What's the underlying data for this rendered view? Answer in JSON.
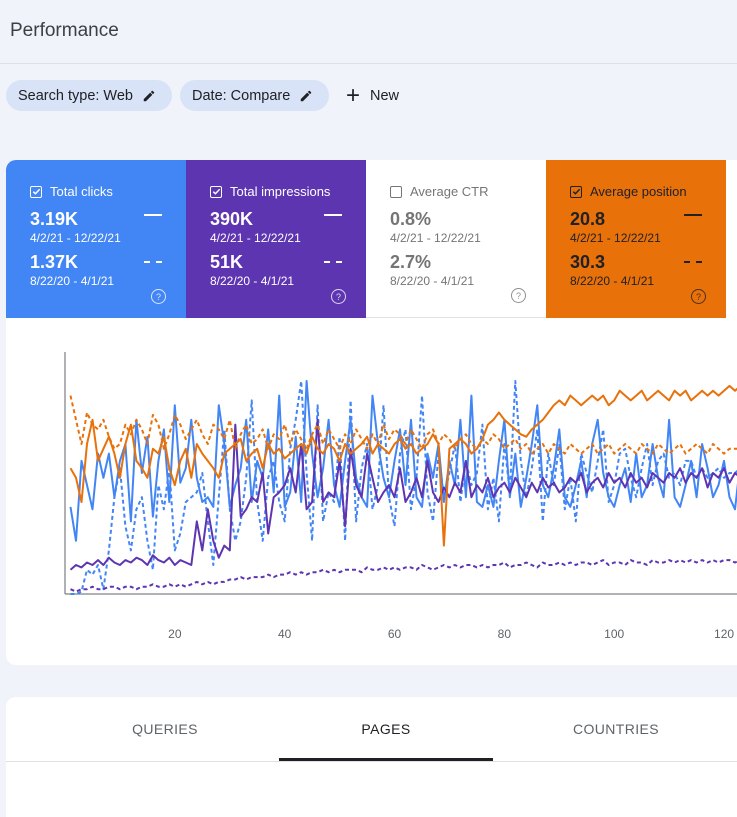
{
  "page_title": "Performance",
  "filters": [
    {
      "label": "Search type: Web"
    },
    {
      "label": "Date: Compare"
    }
  ],
  "new_button": {
    "label": "New"
  },
  "colors": {
    "clicks": "#4285f4",
    "impressions": "#5e35b1",
    "ctr": "#ffffff",
    "position": "#e8710a"
  },
  "metrics": [
    {
      "title": "Total clicks",
      "checked": true,
      "value": "3.19K",
      "range": "4/2/21 - 12/22/21",
      "compare_value": "1.37K",
      "compare_range": "8/22/20 - 4/1/21",
      "help_icon": "help-circle-icon"
    },
    {
      "title": "Total impressions",
      "checked": true,
      "value": "390K",
      "range": "4/2/21 - 12/22/21",
      "compare_value": "51K",
      "compare_range": "8/22/20 - 4/1/21",
      "help_icon": "help-circle-icon"
    },
    {
      "title": "Average CTR",
      "checked": false,
      "value": "0.8%",
      "range": "4/2/21 - 12/22/21",
      "compare_value": "2.7%",
      "compare_range": "8/22/20 - 4/1/21",
      "help_icon": "help-circle-icon"
    },
    {
      "title": "Average position",
      "checked": true,
      "value": "20.8",
      "range": "4/2/21 - 12/22/21",
      "compare_value": "30.3",
      "compare_range": "8/22/20 - 4/1/21",
      "help_icon": "help-circle-icon"
    }
  ],
  "chart_data": {
    "type": "line",
    "title": "",
    "xlabel": "",
    "ylabel": "",
    "xlim": [
      0,
      124
    ],
    "ylim": [
      0,
      100
    ],
    "x_ticks": [
      20,
      40,
      60,
      80,
      100,
      120
    ],
    "grid": false,
    "series": [
      {
        "name": "Total clicks (4/2/21 - 12/22/21)",
        "color": "#4285f4",
        "dashed": false,
        "values": [
          36,
          22,
          55,
          45,
          35,
          58,
          48,
          58,
          40,
          55,
          62,
          30,
          72,
          50,
          65,
          32,
          55,
          68,
          38,
          78,
          46,
          52,
          72,
          48,
          38,
          40,
          36,
          78,
          62,
          36,
          45,
          52,
          72,
          38,
          55,
          48,
          68,
          42,
          82,
          36,
          42,
          65,
          38,
          88,
          58,
          40,
          52,
          72,
          45,
          36,
          55,
          72,
          48,
          40,
          36,
          82,
          62,
          48,
          40,
          55,
          68,
          45,
          72,
          40,
          36,
          58,
          48,
          62,
          38,
          55,
          45,
          72,
          40,
          82,
          38,
          36,
          45,
          36,
          55,
          72,
          40,
          58,
          36,
          48,
          62,
          78,
          45,
          40,
          52,
          68,
          40,
          36,
          45,
          55,
          40,
          62,
          72,
          50,
          40,
          36,
          45,
          52,
          38,
          58,
          40,
          45,
          62,
          48,
          40,
          72,
          40,
          36,
          45,
          55,
          40,
          62,
          52,
          40,
          45,
          55,
          40,
          35,
          55,
          45
        ]
      },
      {
        "name": "Total clicks (8/22/20 - 4/1/21)",
        "color": "#4285f4",
        "dashed": true,
        "values": [
          0,
          0,
          1,
          10,
          8,
          12,
          2,
          18,
          40,
          52,
          28,
          18,
          35,
          40,
          22,
          10,
          45,
          35,
          52,
          18,
          25,
          38,
          40,
          42,
          50,
          30,
          12,
          40,
          68,
          35,
          22,
          30,
          48,
          80,
          38,
          22,
          48,
          55,
          38,
          30,
          60,
          72,
          88,
          50,
          22,
          78,
          30,
          42,
          38,
          65,
          22,
          80,
          30,
          52,
          62,
          35,
          45,
          78,
          40,
          28,
          58,
          68,
          35,
          48,
          82,
          42,
          30,
          58,
          40,
          50,
          62,
          38,
          55,
          45,
          50,
          70,
          35,
          48,
          30,
          62,
          42,
          88,
          55,
          40,
          52,
          68,
          30,
          58,
          45,
          62,
          35,
          48,
          30,
          58,
          50,
          42,
          55,
          68,
          38,
          45,
          58,
          60,
          48,
          40,
          52,
          62,
          45,
          55,
          58,
          48,
          50,
          45,
          55,
          55,
          48,
          52,
          48,
          50,
          52,
          48,
          50,
          50,
          52,
          48
        ]
      },
      {
        "name": "Total impressions (4/2/21 - 12/22/21)",
        "color": "#5e35b1",
        "dashed": false,
        "values": [
          10,
          12,
          11,
          13,
          12,
          14,
          12,
          15,
          13,
          12,
          14,
          13,
          15,
          14,
          12,
          16,
          14,
          13,
          15,
          12,
          14,
          13,
          12,
          30,
          18,
          35,
          22,
          15,
          20,
          18,
          70,
          32,
          35,
          40,
          38,
          50,
          25,
          40,
          42,
          45,
          52,
          42,
          62,
          35,
          38,
          72,
          38,
          42,
          40,
          55,
          28,
          60,
          45,
          40,
          58,
          48,
          38,
          42,
          45,
          40,
          52,
          38,
          42,
          48,
          40,
          55,
          42,
          38,
          44,
          40,
          46,
          42,
          55,
          40,
          45,
          42,
          48,
          40,
          44,
          46,
          42,
          48,
          44,
          40,
          46,
          42,
          48,
          44,
          46,
          42,
          44,
          48,
          46,
          50,
          42,
          46,
          48,
          44,
          50,
          46,
          48,
          44,
          50,
          46,
          48,
          44,
          50,
          48,
          46,
          50,
          48,
          52,
          46,
          50,
          48,
          52,
          44,
          50,
          48,
          52,
          46,
          50,
          48,
          52
        ]
      },
      {
        "name": "Total impressions (8/22/20 - 4/1/21)",
        "color": "#5e35b1",
        "dashed": true,
        "values": [
          2,
          1,
          2,
          2,
          3,
          2,
          2,
          3,
          3,
          2,
          3,
          3,
          2,
          3,
          3,
          4,
          3,
          3,
          4,
          3,
          4,
          3,
          4,
          5,
          4,
          5,
          4,
          5,
          5,
          6,
          6,
          7,
          6,
          7,
          7,
          7,
          8,
          7,
          8,
          8,
          9,
          8,
          9,
          8,
          9,
          9,
          10,
          9,
          10,
          9,
          10,
          10,
          10,
          9,
          11,
          10,
          10,
          11,
          10,
          11,
          10,
          11,
          11,
          10,
          12,
          11,
          10,
          11,
          12,
          11,
          12,
          11,
          12,
          12,
          11,
          12,
          11,
          12,
          12,
          13,
          11,
          12,
          12,
          13,
          12,
          11,
          13,
          12,
          12,
          13,
          12,
          13,
          12,
          13,
          13,
          12,
          13,
          14,
          12,
          13,
          13,
          12,
          14,
          13,
          13,
          12,
          14,
          13,
          13,
          14,
          13,
          14,
          13,
          14,
          13,
          14,
          13,
          14,
          13,
          14,
          14,
          13,
          14,
          14
        ]
      },
      {
        "name": "Average position (4/2/21 - 12/22/21)",
        "color": "#e8710a",
        "dashed": false,
        "values": [
          52,
          48,
          38,
          62,
          72,
          55,
          60,
          65,
          58,
          48,
          62,
          70,
          55,
          52,
          48,
          60,
          58,
          65,
          52,
          45,
          55,
          60,
          48,
          62,
          58,
          55,
          52,
          48,
          58,
          60,
          62,
          64,
          55,
          58,
          60,
          52,
          62,
          58,
          60,
          56,
          58,
          60,
          62,
          58,
          65,
          60,
          58,
          62,
          60,
          55,
          62,
          58,
          60,
          62,
          65,
          58,
          62,
          60,
          58,
          62,
          64,
          60,
          62,
          58,
          60,
          62,
          66,
          62,
          20,
          60,
          62,
          64,
          62,
          58,
          60,
          64,
          70,
          72,
          75,
          72,
          70,
          68,
          66,
          65,
          68,
          70,
          72,
          75,
          78,
          80,
          78,
          82,
          80,
          78,
          80,
          82,
          80,
          82,
          78,
          80,
          84,
          82,
          80,
          82,
          84,
          80,
          82,
          84,
          82,
          80,
          84,
          82,
          84,
          80,
          82,
          84,
          82,
          84,
          82,
          84,
          86,
          84,
          86,
          84
        ]
      },
      {
        "name": "Average position (8/22/20 - 4/1/21)",
        "color": "#e8710a",
        "dashed": true,
        "values": [
          82,
          72,
          62,
          75,
          70,
          68,
          72,
          65,
          60,
          62,
          70,
          66,
          72,
          68,
          62,
          74,
          70,
          60,
          66,
          74,
          70,
          64,
          68,
          72,
          66,
          62,
          70,
          68,
          64,
          72,
          60,
          66,
          70,
          62,
          64,
          68,
          60,
          66,
          64,
          70,
          62,
          68,
          64,
          60,
          66,
          70,
          62,
          68,
          64,
          60,
          66,
          62,
          68,
          64,
          60,
          66,
          62,
          70,
          64,
          68,
          66,
          62,
          68,
          64,
          60,
          66,
          68,
          62,
          66,
          64,
          60,
          64,
          66,
          62,
          60,
          64,
          62,
          66,
          64,
          60,
          62,
          64,
          60,
          62,
          58,
          60,
          62,
          58,
          62,
          60,
          58,
          62,
          60,
          58,
          60,
          62,
          58,
          60,
          62,
          58,
          60,
          62,
          60,
          58,
          62,
          60,
          58,
          62,
          60,
          58,
          60,
          62,
          58,
          60,
          62,
          60,
          58,
          62,
          60,
          58,
          60,
          60,
          60,
          60
        ]
      }
    ]
  },
  "tabs": [
    {
      "label": "QUERIES",
      "active": false
    },
    {
      "label": "PAGES",
      "active": true
    },
    {
      "label": "COUNTRIES",
      "active": false
    }
  ]
}
